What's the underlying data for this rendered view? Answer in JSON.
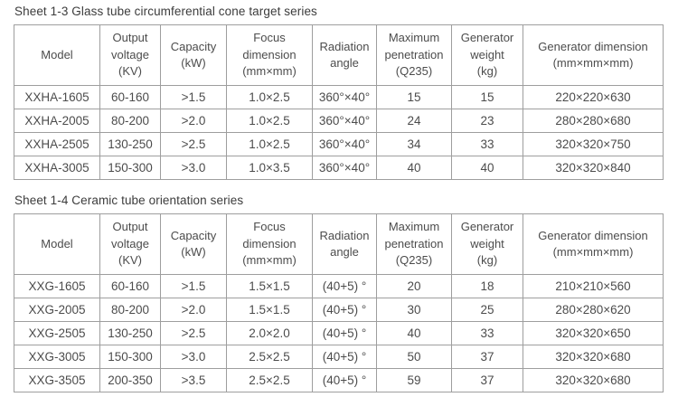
{
  "colors": {
    "background": "#ffffff",
    "border": "#9e9e9e",
    "text": "#4c4c4c",
    "title_text": "#3c3c3c"
  },
  "tables": [
    {
      "title": "Sheet 1-3 Glass tube circumferential cone target series",
      "headers": [
        "Model",
        "Output\nvoltage\n(KV)",
        "Capacity\n(kW)",
        "Focus\ndimension\n(mm×mm)",
        "Radiation\nangle",
        "Maximum\npenetration\n(Q235)",
        "Generator\nweight\n(kg)",
        "Generator dimension\n(mm×mm×mm)"
      ],
      "rows": [
        [
          "XXHA-1605",
          "60-160",
          ">1.5",
          "1.0×2.5",
          "360°×40°",
          "15",
          "15",
          "220×220×630"
        ],
        [
          "XXHA-2005",
          "80-200",
          ">2.0",
          "1.0×2.5",
          "360°×40°",
          "24",
          "23",
          "280×280×680"
        ],
        [
          "XXHA-2505",
          "130-250",
          ">2.5",
          "1.0×2.5",
          "360°×40°",
          "34",
          "33",
          "320×320×750"
        ],
        [
          "XXHA-3005",
          "150-300",
          ">3.0",
          "1.0×3.5",
          "360°×40°",
          "40",
          "40",
          "320×320×840"
        ]
      ]
    },
    {
      "title": "Sheet 1-4 Ceramic tube orientation series",
      "headers": [
        "Model",
        "Output\nvoltage\n(KV)",
        "Capacity\n(kW)",
        "Focus\ndimension\n(mm×mm)",
        "Radiation\nangle",
        "Maximum\npenetration\n(Q235)",
        "Generator\nweight\n(kg)",
        "Generator dimension\n(mm×mm×mm)"
      ],
      "rows": [
        [
          "XXG-1605",
          "60-160",
          ">1.5",
          "1.5×1.5",
          "(40+5) °",
          "20",
          "18",
          "210×210×560"
        ],
        [
          "XXG-2005",
          "80-200",
          ">2.0",
          "1.5×1.5",
          "(40+5) °",
          "30",
          "25",
          "280×280×620"
        ],
        [
          "XXG-2505",
          "130-250",
          ">2.5",
          "2.0×2.0",
          "(40+5) °",
          "40",
          "33",
          "320×320×650"
        ],
        [
          "XXG-3005",
          "150-300",
          ">3.0",
          "2.5×2.5",
          "(40+5) °",
          "50",
          "37",
          "320×320×680"
        ],
        [
          "XXG-3505",
          "200-350",
          ">3.5",
          "2.5×2.5",
          "(40+5) °",
          "59",
          "37",
          "320×320×680"
        ]
      ]
    }
  ]
}
